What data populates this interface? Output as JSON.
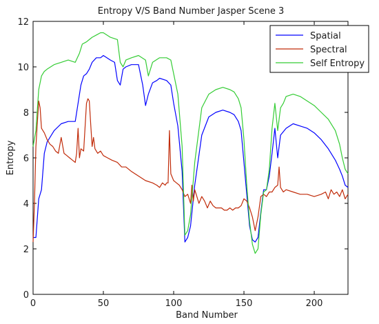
{
  "chart_data": {
    "type": "line",
    "title": "Entropy V/S Band Number Jasper Scene 3",
    "xlabel": "Band Number",
    "ylabel": "Entropy",
    "xlim": [
      0,
      224
    ],
    "ylim": [
      0,
      12
    ],
    "x_ticks": [
      0,
      50,
      100,
      150,
      200
    ],
    "y_ticks": [
      0,
      2,
      4,
      6,
      8,
      10,
      12
    ],
    "x_tick_labels": [
      "0",
      "50",
      "100",
      "150",
      "200"
    ],
    "y_tick_labels": [
      "0",
      "2",
      "4",
      "6",
      "8",
      "10",
      "12"
    ],
    "grid": false,
    "legend_position": "top-right",
    "series": [
      {
        "name": "Spatial",
        "color": "#0000ff",
        "x": [
          0,
          2,
          4,
          6,
          8,
          10,
          12,
          15,
          20,
          25,
          30,
          32,
          34,
          36,
          38,
          40,
          42,
          45,
          48,
          50,
          55,
          58,
          60,
          62,
          64,
          66,
          70,
          75,
          78,
          80,
          82,
          85,
          88,
          90,
          95,
          98,
          100,
          103,
          106,
          108,
          110,
          112,
          115,
          120,
          125,
          130,
          135,
          140,
          143,
          146,
          148,
          150,
          152,
          154,
          156,
          158,
          160,
          162,
          164,
          166,
          168,
          170,
          172,
          174,
          176,
          180,
          185,
          190,
          195,
          200,
          205,
          210,
          215,
          218,
          220,
          222,
          224
        ],
        "y": [
          2.5,
          2.5,
          4.2,
          4.6,
          6.2,
          6.7,
          6.9,
          7.2,
          7.5,
          7.6,
          7.6,
          8.4,
          9.2,
          9.6,
          9.7,
          9.9,
          10.2,
          10.4,
          10.4,
          10.5,
          10.3,
          10.2,
          9.4,
          9.2,
          9.9,
          10.0,
          10.1,
          10.1,
          9.2,
          8.3,
          8.8,
          9.3,
          9.4,
          9.5,
          9.4,
          9.2,
          8.4,
          7.4,
          5.4,
          2.3,
          2.5,
          3.0,
          4.8,
          7.0,
          7.8,
          8.0,
          8.1,
          8.0,
          7.9,
          7.6,
          7.2,
          5.8,
          4.4,
          3.0,
          2.4,
          2.3,
          2.5,
          3.6,
          4.6,
          4.6,
          5.2,
          6.2,
          7.3,
          6.0,
          7.0,
          7.3,
          7.5,
          7.4,
          7.3,
          7.1,
          6.8,
          6.4,
          5.9,
          5.5,
          5.2,
          4.8,
          4.7
        ]
      },
      {
        "name": "Spectral",
        "color": "#c02a08",
        "x": [
          0,
          1,
          2,
          3,
          4,
          5,
          6,
          8,
          10,
          12,
          14,
          16,
          18,
          20,
          22,
          24,
          26,
          28,
          30,
          31,
          32,
          33,
          34,
          36,
          38,
          39,
          40,
          41,
          42,
          43,
          44,
          46,
          48,
          50,
          53,
          56,
          60,
          63,
          66,
          70,
          75,
          80,
          85,
          88,
          90,
          92,
          94,
          95,
          96,
          97,
          98,
          100,
          102,
          104,
          106,
          108,
          110,
          112,
          113,
          114,
          115,
          116,
          118,
          120,
          122,
          124,
          126,
          128,
          130,
          132,
          134,
          136,
          138,
          140,
          142,
          144,
          146,
          148,
          150,
          152,
          154,
          156,
          158,
          160,
          162,
          164,
          166,
          168,
          170,
          172,
          174,
          175,
          176,
          178,
          180,
          185,
          190,
          195,
          200,
          205,
          208,
          210,
          212,
          214,
          216,
          218,
          220,
          222,
          224
        ],
        "y": [
          2.3,
          4.0,
          6.5,
          7.5,
          8.5,
          8.2,
          7.3,
          7.1,
          6.8,
          6.6,
          6.5,
          6.3,
          6.2,
          6.9,
          6.2,
          6.1,
          6.0,
          5.9,
          5.8,
          6.2,
          7.3,
          6.0,
          6.4,
          6.3,
          8.4,
          8.6,
          8.5,
          7.5,
          6.5,
          6.9,
          6.4,
          6.2,
          6.3,
          6.1,
          6.0,
          5.9,
          5.8,
          5.6,
          5.6,
          5.4,
          5.2,
          5.0,
          4.9,
          4.8,
          4.7,
          4.9,
          4.8,
          4.9,
          4.9,
          7.2,
          5.3,
          5.0,
          4.9,
          4.8,
          4.6,
          4.3,
          4.4,
          4.0,
          4.8,
          4.1,
          4.6,
          4.4,
          4.0,
          4.3,
          4.1,
          3.8,
          4.1,
          3.9,
          3.8,
          3.8,
          3.8,
          3.7,
          3.7,
          3.8,
          3.7,
          3.8,
          3.8,
          3.9,
          4.2,
          4.1,
          3.8,
          3.4,
          2.8,
          3.4,
          4.3,
          4.4,
          4.3,
          4.5,
          4.5,
          4.7,
          4.8,
          5.6,
          4.7,
          4.5,
          4.6,
          4.5,
          4.4,
          4.4,
          4.3,
          4.4,
          4.5,
          4.2,
          4.6,
          4.4,
          4.5,
          4.3,
          4.6,
          4.2,
          4.4
        ]
      },
      {
        "name": "Self Entropy",
        "color": "#33cc33",
        "x": [
          0,
          2,
          4,
          6,
          8,
          10,
          15,
          20,
          25,
          30,
          33,
          35,
          38,
          40,
          42,
          45,
          48,
          50,
          55,
          60,
          62,
          64,
          66,
          70,
          75,
          80,
          82,
          85,
          90,
          95,
          98,
          100,
          103,
          106,
          108,
          110,
          112,
          115,
          120,
          125,
          130,
          135,
          140,
          143,
          146,
          148,
          150,
          152,
          154,
          156,
          158,
          160,
          162,
          164,
          166,
          168,
          170,
          172,
          174,
          176,
          178,
          180,
          185,
          190,
          195,
          200,
          205,
          210,
          215,
          218,
          220,
          222,
          224
        ],
        "y": [
          6.5,
          7.2,
          9.0,
          9.6,
          9.8,
          9.9,
          10.1,
          10.2,
          10.3,
          10.2,
          10.6,
          11.0,
          11.1,
          11.2,
          11.3,
          11.4,
          11.5,
          11.5,
          11.3,
          11.2,
          10.2,
          10.0,
          10.3,
          10.4,
          10.5,
          10.3,
          9.6,
          10.2,
          10.4,
          10.4,
          10.3,
          9.7,
          8.8,
          6.5,
          2.6,
          2.8,
          3.5,
          5.8,
          8.2,
          8.8,
          9.0,
          9.1,
          9.0,
          8.9,
          8.6,
          8.2,
          6.8,
          4.8,
          3.2,
          2.2,
          1.8,
          2.0,
          3.5,
          4.5,
          4.6,
          5.5,
          7.3,
          8.4,
          7.2,
          8.2,
          8.4,
          8.7,
          8.8,
          8.7,
          8.5,
          8.3,
          8.0,
          7.7,
          7.2,
          6.6,
          6.0,
          5.5,
          5.3
        ]
      }
    ]
  }
}
